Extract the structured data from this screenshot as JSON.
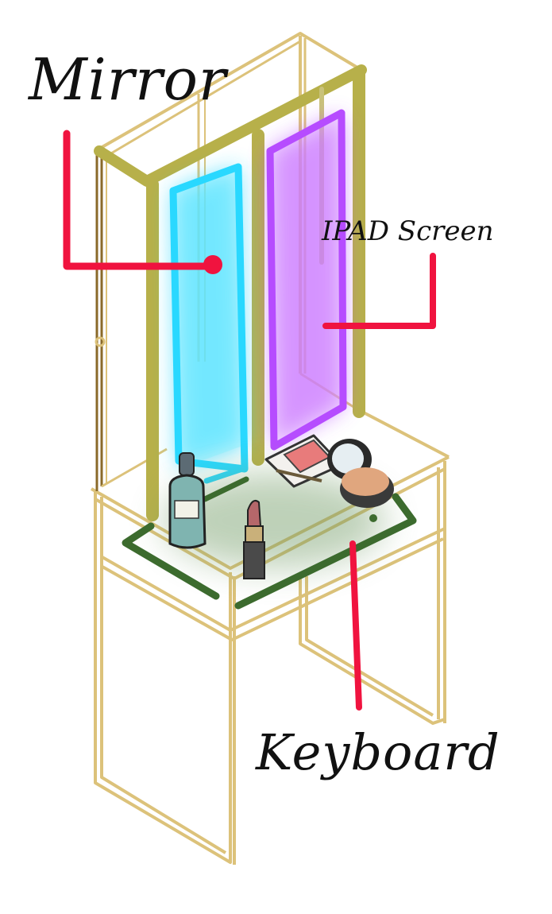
{
  "labels": {
    "mirror": "Mirror",
    "ipad_screen": "IPAD Screen",
    "keyboard": "Keyboard"
  },
  "colors": {
    "frame_gold": "#b7b04a",
    "frame_outline": "#dcc27a",
    "frame_dark": "#8a6a2a",
    "mirror_cyan": "#29d8ff",
    "screen_purple": "#b64cff",
    "keyboard_green": "#3c6b2e",
    "callout_red": "#f0133f"
  },
  "icons": [
    "dropper-bottle-icon",
    "lipstick-icon",
    "blush-palette-icon",
    "compact-mirror-icon",
    "powder-compact-icon"
  ]
}
